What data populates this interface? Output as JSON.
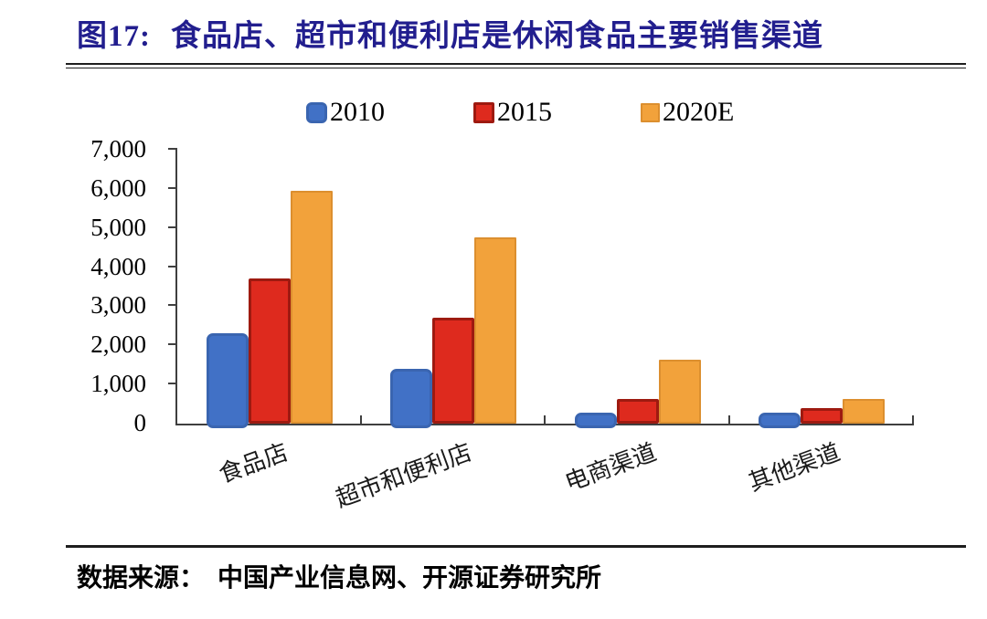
{
  "title": {
    "number": "图17:",
    "text": "食品店、超市和便利店是休闲食品主要销售渠道"
  },
  "footer": {
    "label": "数据来源：",
    "text": "中国产业信息网、开源证券研究所"
  },
  "colors": {
    "title": "#221E8E",
    "axis": "#3f3f3f",
    "rule": "#1e1e1e",
    "series_2010_fill": "#4171C6",
    "series_2010_border": "#3A65B0",
    "series_2015_fill": "#DE2A1E",
    "series_2015_border": "#9E1A10",
    "series_2020E_fill": "#F2A23B",
    "series_2020E_border": "#DC8F2F"
  },
  "chart_data": {
    "type": "bar",
    "categories": [
      "食品店",
      "超市和便利店",
      "电商渠道",
      "其他渠道"
    ],
    "series": [
      {
        "name": "2010",
        "color": "#4171C6",
        "border": "#3A65B0",
        "values": [
          2300,
          1400,
          270,
          280
        ]
      },
      {
        "name": "2015",
        "color": "#DE2A1E",
        "border": "#9E1A10",
        "values": [
          3700,
          2700,
          630,
          400
        ]
      },
      {
        "name": "2020E",
        "color": "#F2A23B",
        "border": "#DC8F2F",
        "values": [
          5950,
          4750,
          1630,
          620
        ]
      }
    ],
    "title": "图17: 食品店、超市和便利店是休闲食品主要销售渠道",
    "xlabel": "",
    "ylabel": "",
    "ylim": [
      0,
      7000
    ],
    "ytick_step": 1000,
    "yticklabels": [
      "0",
      "1,000",
      "2,000",
      "3,000",
      "4,000",
      "5,000",
      "6,000",
      "7,000"
    ],
    "grid": false,
    "legend_position": "top",
    "category_label_rotation_deg": -20
  }
}
